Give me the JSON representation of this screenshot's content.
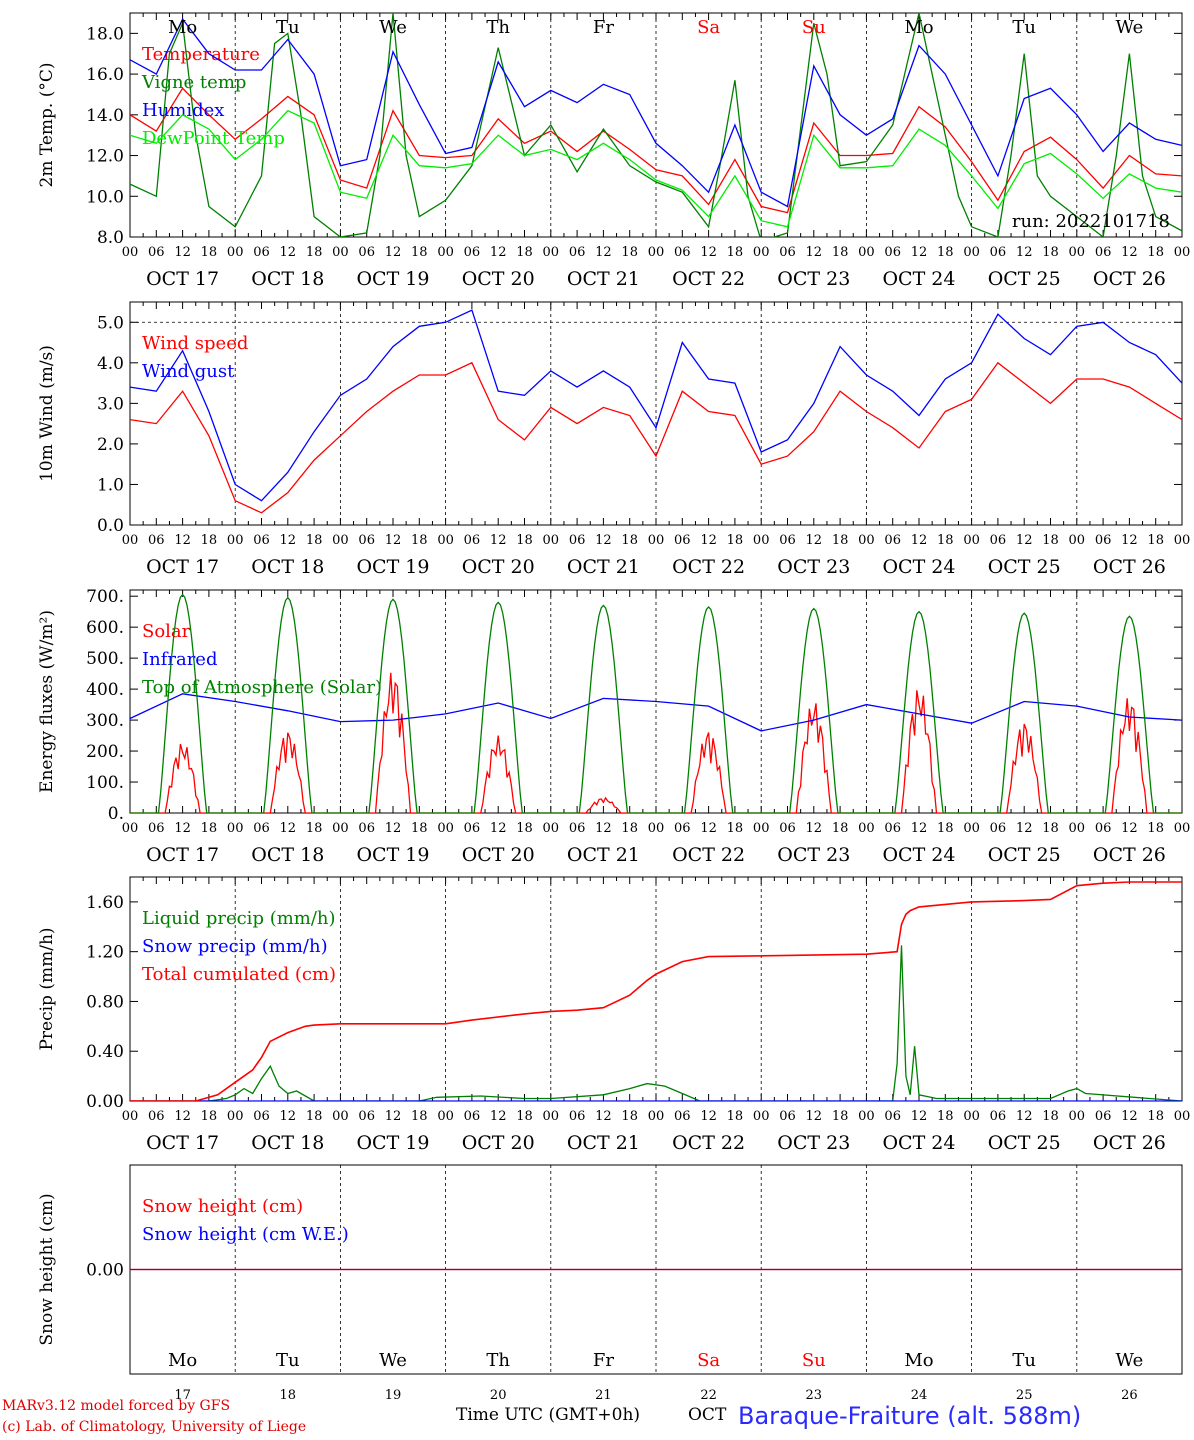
{
  "days": [
    {
      "dow": "Mo",
      "date": "OCT 17",
      "day": "17",
      "weekend": false
    },
    {
      "dow": "Tu",
      "date": "OCT 18",
      "day": "18",
      "weekend": false
    },
    {
      "dow": "We",
      "date": "OCT 19",
      "day": "19",
      "weekend": false
    },
    {
      "dow": "Th",
      "date": "OCT 20",
      "day": "20",
      "weekend": false
    },
    {
      "dow": "Fr",
      "date": "OCT 21",
      "day": "21",
      "weekend": false
    },
    {
      "dow": "Sa",
      "date": "OCT 22",
      "day": "22",
      "weekend": true
    },
    {
      "dow": "Su",
      "date": "OCT 23",
      "day": "23",
      "weekend": true
    },
    {
      "dow": "Mo",
      "date": "OCT 24",
      "day": "24",
      "weekend": false
    },
    {
      "dow": "Tu",
      "date": "OCT 25",
      "day": "25",
      "weekend": false
    },
    {
      "dow": "We",
      "date": "OCT 26",
      "day": "26",
      "weekend": false
    }
  ],
  "hour_labels": [
    "00",
    "06",
    "12",
    "18"
  ],
  "run_label": "run: 2022101718",
  "footer": {
    "line1": "MARv3.12 model forced by GFS",
    "line2": "(c) Lab. of Climatology, University of Liege",
    "axis_label": "Time UTC (GMT+0h)",
    "month": "OCT",
    "station": "Baraque-Fraiture (alt. 588m)"
  },
  "colors": {
    "red": "#ff0000",
    "green": "#008000",
    "blue": "#0000ff",
    "lightgreen": "#00ee00",
    "weekend": "#ff0000",
    "purple": "#800080"
  },
  "chart_data": [
    {
      "type": "line",
      "ylabel": "2m Temp. (°C)",
      "ylim": [
        8,
        19
      ],
      "yticks": [
        "8.0",
        "10.0",
        "12.0",
        "14.0",
        "16.0",
        "18.0"
      ],
      "series": [
        {
          "name": "Temperature",
          "color": "#ff0000",
          "x": [
            0,
            6,
            12,
            18,
            24,
            30,
            36,
            42,
            48,
            54,
            60,
            66,
            72,
            78,
            84,
            90,
            96,
            102,
            108,
            114,
            120,
            126,
            132,
            138,
            144,
            150,
            156,
            162,
            168,
            174,
            180,
            186,
            192,
            198,
            204,
            210,
            216,
            222,
            228,
            234,
            240
          ],
          "values": [
            14.0,
            13.2,
            15.3,
            14.0,
            12.8,
            13.8,
            14.9,
            14.0,
            10.8,
            10.4,
            14.2,
            12.0,
            11.9,
            12.0,
            13.8,
            12.6,
            13.2,
            12.2,
            13.2,
            12.3,
            11.3,
            11.0,
            9.6,
            11.8,
            9.5,
            9.2,
            13.6,
            12.0,
            12.0,
            12.1,
            14.4,
            13.4,
            11.7,
            9.8,
            12.2,
            12.9,
            11.8,
            10.4,
            12.0,
            11.1,
            11.0
          ]
        },
        {
          "name": "Vigne temp",
          "color": "#008000",
          "x": [
            0,
            6,
            9,
            12,
            15,
            18,
            24,
            30,
            33,
            36,
            39,
            42,
            48,
            54,
            57,
            60,
            63,
            66,
            72,
            78,
            84,
            90,
            96,
            102,
            108,
            114,
            120,
            126,
            132,
            135,
            138,
            141,
            144,
            150,
            156,
            159,
            162,
            168,
            174,
            180,
            186,
            189,
            192,
            198,
            201,
            204,
            207,
            210,
            216,
            222,
            225,
            228,
            231,
            234,
            240
          ],
          "values": [
            10.6,
            10.0,
            17.0,
            18.5,
            13.0,
            9.5,
            8.5,
            11.0,
            17.5,
            18.0,
            14.0,
            9.0,
            8.0,
            8.2,
            12.0,
            19.0,
            12.0,
            9.0,
            9.8,
            11.5,
            17.3,
            12.0,
            13.5,
            11.2,
            13.3,
            11.5,
            10.7,
            10.2,
            8.5,
            12.0,
            15.7,
            10.0,
            7.8,
            8.2,
            18.5,
            16.0,
            11.5,
            11.7,
            13.5,
            19.0,
            13.0,
            10.0,
            8.5,
            8.0,
            12.0,
            17.0,
            11.0,
            10.0,
            9.0,
            8.0,
            12.0,
            17.0,
            11.0,
            9.0,
            8.3
          ]
        },
        {
          "name": "Humidex",
          "color": "#0000ff",
          "x": [
            0,
            6,
            12,
            18,
            24,
            30,
            36,
            42,
            48,
            54,
            60,
            66,
            72,
            78,
            84,
            90,
            96,
            102,
            108,
            114,
            120,
            126,
            132,
            138,
            144,
            150,
            156,
            162,
            168,
            174,
            180,
            186,
            192,
            198,
            204,
            210,
            216,
            222,
            228,
            234,
            240
          ],
          "values": [
            16.7,
            16.0,
            18.7,
            17.0,
            16.2,
            16.2,
            17.7,
            16.0,
            11.5,
            11.8,
            17.1,
            14.5,
            12.1,
            12.4,
            16.6,
            14.4,
            15.2,
            14.6,
            15.5,
            15.0,
            12.6,
            11.5,
            10.2,
            13.5,
            10.2,
            9.5,
            16.4,
            14.0,
            13.0,
            13.8,
            17.4,
            16.0,
            13.5,
            11.0,
            14.8,
            15.3,
            14.0,
            12.2,
            13.6,
            12.8,
            12.5
          ]
        },
        {
          "name": "DewPoint Temp",
          "color": "#00ee00",
          "x": [
            0,
            6,
            12,
            18,
            24,
            30,
            36,
            42,
            48,
            54,
            60,
            66,
            72,
            78,
            84,
            90,
            96,
            102,
            108,
            114,
            120,
            126,
            132,
            138,
            144,
            150,
            156,
            162,
            168,
            174,
            180,
            186,
            192,
            198,
            204,
            210,
            216,
            222,
            228,
            234,
            240
          ],
          "values": [
            13.0,
            12.6,
            14.0,
            13.3,
            11.8,
            12.8,
            14.2,
            13.6,
            10.2,
            9.9,
            13.0,
            11.5,
            11.4,
            11.6,
            13.0,
            12.0,
            12.3,
            11.8,
            12.6,
            11.8,
            10.8,
            10.3,
            9.0,
            11.0,
            8.8,
            8.5,
            13.0,
            11.4,
            11.4,
            11.5,
            13.3,
            12.5,
            11.0,
            9.4,
            11.6,
            12.1,
            11.1,
            9.9,
            11.1,
            10.4,
            10.2
          ]
        }
      ]
    },
    {
      "type": "line",
      "ylabel": "10m Wind (m/s)",
      "ylim": [
        0,
        5.5
      ],
      "yticks": [
        "0.0",
        "1.0",
        "2.0",
        "3.0",
        "4.0",
        "5.0"
      ],
      "series": [
        {
          "name": "Wind speed",
          "color": "#ff0000",
          "x": [
            0,
            6,
            12,
            18,
            24,
            30,
            36,
            42,
            48,
            54,
            60,
            66,
            72,
            78,
            84,
            90,
            96,
            102,
            108,
            114,
            120,
            126,
            132,
            138,
            144,
            150,
            156,
            162,
            168,
            174,
            180,
            186,
            192,
            198,
            204,
            210,
            216,
            222,
            228,
            234,
            240
          ],
          "values": [
            2.6,
            2.5,
            3.3,
            2.2,
            0.6,
            0.3,
            0.8,
            1.6,
            2.2,
            2.8,
            3.3,
            3.7,
            3.7,
            4.0,
            2.6,
            2.1,
            2.9,
            2.5,
            2.9,
            2.7,
            1.7,
            3.3,
            2.8,
            2.7,
            1.5,
            1.7,
            2.3,
            3.3,
            2.8,
            2.4,
            1.9,
            2.8,
            3.1,
            4.0,
            3.5,
            3.0,
            3.6,
            3.6,
            3.4,
            3.0,
            2.6
          ]
        },
        {
          "name": "Wind gust",
          "color": "#0000ff",
          "x": [
            0,
            6,
            12,
            18,
            24,
            30,
            36,
            42,
            48,
            54,
            60,
            66,
            72,
            78,
            84,
            90,
            96,
            102,
            108,
            114,
            120,
            126,
            132,
            138,
            144,
            150,
            156,
            162,
            168,
            174,
            180,
            186,
            192,
            198,
            204,
            210,
            216,
            222,
            228,
            234,
            240
          ],
          "values": [
            3.4,
            3.3,
            4.3,
            2.8,
            1.0,
            0.6,
            1.3,
            2.3,
            3.2,
            3.6,
            4.4,
            4.9,
            5.0,
            5.3,
            3.3,
            3.2,
            3.8,
            3.4,
            3.8,
            3.4,
            2.4,
            4.5,
            3.6,
            3.5,
            1.8,
            2.1,
            3.0,
            4.4,
            3.7,
            3.3,
            2.7,
            3.6,
            4.0,
            5.2,
            4.6,
            4.2,
            4.9,
            5.0,
            4.5,
            4.2,
            3.5
          ]
        }
      ]
    },
    {
      "type": "line",
      "ylabel": "Energy fluxes (W/m²)",
      "ylim": [
        0,
        720
      ],
      "yticks": [
        "0.",
        "100.",
        "200.",
        "300.",
        "400.",
        "500.",
        "600.",
        "700."
      ],
      "series": [
        {
          "name": "Solar",
          "color": "#ff0000",
          "peaks": [
            230,
            270,
            465,
            250,
            50,
            270,
            365,
            410,
            300,
            380
          ]
        },
        {
          "name": "Infrared",
          "color": "#0000ff",
          "x": [
            0,
            12,
            24,
            36,
            48,
            60,
            72,
            84,
            96,
            108,
            120,
            132,
            144,
            156,
            168,
            180,
            192,
            204,
            216,
            228,
            240
          ],
          "values": [
            305,
            385,
            360,
            330,
            295,
            300,
            320,
            355,
            305,
            370,
            360,
            345,
            265,
            300,
            350,
            320,
            290,
            360,
            345,
            310,
            300
          ]
        },
        {
          "name": "Top of Atmosphere (Solar)",
          "color": "#008000",
          "peaks": [
            705,
            695,
            690,
            680,
            670,
            665,
            660,
            650,
            645,
            635
          ]
        }
      ]
    },
    {
      "type": "line",
      "ylabel": "Precip (mm/h)",
      "ylim": [
        0,
        1.8
      ],
      "yticks": [
        "0.00",
        "0.40",
        "0.80",
        "1.20",
        "1.60"
      ],
      "series": [
        {
          "name": "Liquid precip (mm/h)",
          "color": "#008000",
          "x": [
            0,
            18,
            22,
            24,
            26,
            28,
            30,
            32,
            34,
            36,
            38,
            42,
            48,
            66,
            70,
            80,
            90,
            96,
            108,
            114,
            118,
            122,
            126,
            130,
            174,
            175,
            176,
            177,
            178,
            179,
            180,
            184,
            210,
            214,
            216,
            218,
            240
          ],
          "values": [
            0,
            0,
            0.02,
            0.05,
            0.1,
            0.06,
            0.18,
            0.28,
            0.12,
            0.06,
            0.08,
            0,
            0,
            0,
            0.03,
            0.04,
            0.02,
            0.02,
            0.05,
            0.1,
            0.14,
            0.12,
            0.06,
            0,
            0,
            0.3,
            1.25,
            0.2,
            0.05,
            0.44,
            0.05,
            0.02,
            0.02,
            0.08,
            0.1,
            0.06,
            0
          ]
        },
        {
          "name": "Snow precip (mm/h)",
          "color": "#0000ff",
          "x": [
            0,
            240
          ],
          "values": [
            0,
            0
          ]
        },
        {
          "name": "Total cumulated (cm)",
          "color": "#ff0000",
          "x": [
            0,
            15,
            20,
            24,
            28,
            30,
            32,
            36,
            40,
            42,
            48,
            60,
            72,
            78,
            90,
            96,
            102,
            108,
            114,
            118,
            120,
            126,
            132,
            150,
            168,
            175,
            176,
            177,
            178,
            180,
            186,
            192,
            204,
            210,
            216,
            222,
            228,
            240
          ],
          "values": [
            0,
            0,
            0.05,
            0.15,
            0.25,
            0.35,
            0.48,
            0.55,
            0.6,
            0.61,
            0.62,
            0.62,
            0.62,
            0.65,
            0.7,
            0.72,
            0.73,
            0.75,
            0.85,
            0.97,
            1.02,
            1.12,
            1.16,
            1.17,
            1.18,
            1.2,
            1.42,
            1.5,
            1.53,
            1.56,
            1.58,
            1.6,
            1.61,
            1.62,
            1.73,
            1.75,
            1.76,
            1.76
          ]
        }
      ]
    },
    {
      "type": "line",
      "ylabel": "Snow height (cm)",
      "ylim": [
        -1,
        1
      ],
      "yticks": [
        "0.00"
      ],
      "series": [
        {
          "name": "Snow height (cm)",
          "color": "#ff0000",
          "x": [
            0,
            240
          ],
          "values": [
            0,
            0
          ]
        },
        {
          "name": "Snow height (cm W.E.)",
          "color": "#0000ff",
          "x": [
            0,
            240
          ],
          "values": [
            0,
            0
          ]
        }
      ]
    }
  ]
}
